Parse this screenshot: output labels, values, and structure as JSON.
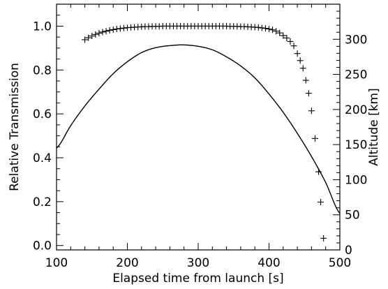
{
  "chart_data": {
    "type": "scatter",
    "title": "",
    "xlabel": "Elapsed time from launch [s]",
    "ylabel": "Relative Transmission",
    "y2label": "Altitude [km]",
    "xlim": [
      100,
      500
    ],
    "ylim": [
      -0.02,
      1.1
    ],
    "y2lim": [
      0,
      350
    ],
    "x_ticks": [
      100,
      200,
      300,
      400,
      500
    ],
    "x_tick_labels": [
      "100",
      "200",
      "300",
      "400",
      "500"
    ],
    "y_ticks": [
      0.0,
      0.2,
      0.4,
      0.6,
      0.8,
      1.0
    ],
    "y_tick_labels": [
      "0.0",
      "0.2",
      "0.4",
      "0.6",
      "0.8",
      "1.0"
    ],
    "y2_ticks": [
      0,
      50,
      100,
      150,
      200,
      250,
      300
    ],
    "y2_tick_labels": [
      "0",
      "50",
      "100",
      "150",
      "200",
      "250",
      "300"
    ],
    "grid": false,
    "series": [
      {
        "marker": "plus",
        "axis": "left",
        "x": [
          140,
          145,
          150,
          155,
          160,
          165,
          170,
          175,
          180,
          185,
          190,
          195,
          200,
          205,
          210,
          215,
          220,
          225,
          230,
          235,
          240,
          245,
          250,
          255,
          260,
          265,
          270,
          275,
          280,
          285,
          290,
          295,
          300,
          305,
          310,
          315,
          320,
          325,
          330,
          335,
          340,
          345,
          350,
          355,
          360,
          365,
          370,
          375,
          380,
          385,
          390,
          395,
          400,
          405,
          410,
          415,
          420,
          425,
          430,
          435,
          440,
          444,
          448,
          452,
          456,
          460,
          465,
          470,
          473,
          477
        ],
        "y": [
          0.938,
          0.947,
          0.955,
          0.962,
          0.968,
          0.973,
          0.977,
          0.981,
          0.984,
          0.987,
          0.989,
          0.991,
          0.993,
          0.994,
          0.995,
          0.996,
          0.997,
          0.998,
          0.998,
          0.999,
          0.999,
          0.999,
          1.0,
          1.0,
          1.0,
          1.0,
          1.0,
          1.0,
          1.0,
          1.0,
          1.0,
          1.0,
          1.0,
          1.0,
          1.0,
          1.0,
          1.0,
          1.0,
          1.0,
          1.0,
          1.0,
          0.999,
          0.999,
          0.999,
          0.998,
          0.998,
          0.997,
          0.996,
          0.995,
          0.994,
          0.992,
          0.99,
          0.987,
          0.983,
          0.977,
          0.969,
          0.957,
          0.946,
          0.93,
          0.91,
          0.875,
          0.843,
          0.808,
          0.753,
          0.694,
          0.614,
          0.488,
          0.336,
          0.198,
          0.033
        ]
      },
      {
        "marker": "line",
        "axis": "right",
        "x": [
          100,
          120,
          140,
          160,
          180,
          200,
          220,
          240,
          260,
          280,
          300,
          320,
          340,
          360,
          380,
          400,
          420,
          440,
          460,
          480,
          500
        ],
        "y": [
          145,
          177,
          205,
          229,
          251,
          268,
          281,
          288,
          291,
          292,
          290,
          285,
          275,
          262,
          245,
          222,
          196,
          166,
          133,
          96,
          52
        ]
      }
    ]
  }
}
